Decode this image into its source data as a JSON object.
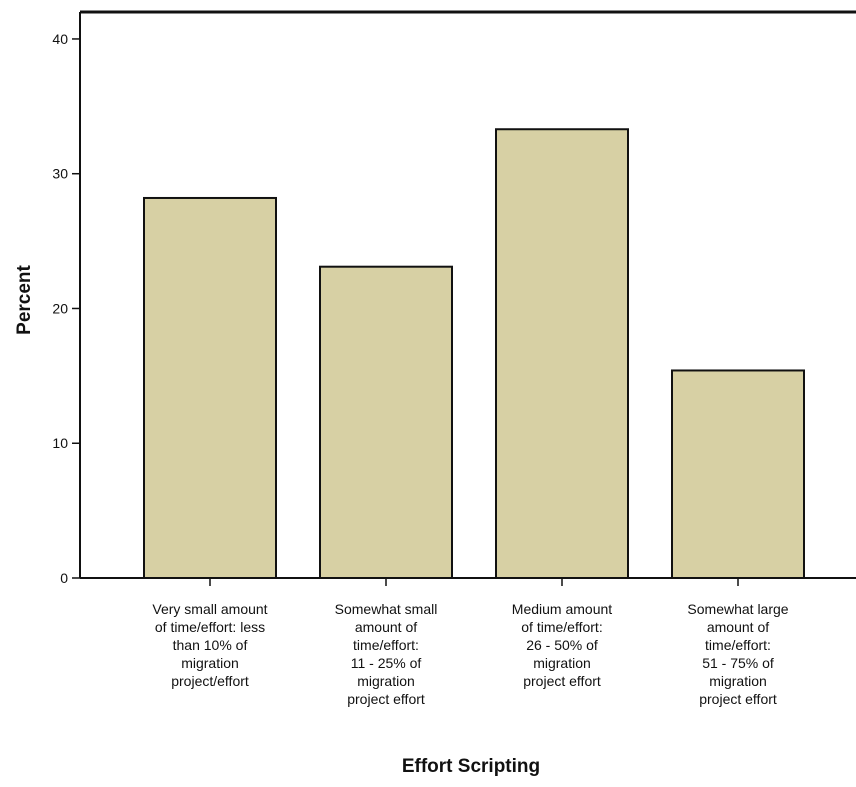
{
  "chart_data": {
    "type": "bar",
    "xlabel": "Effort Scripting",
    "ylabel": "Percent",
    "ylim": [
      0,
      42
    ],
    "yticks": [
      0,
      10,
      20,
      30,
      40
    ],
    "grid": false,
    "bar_color": "#d7d0a4",
    "bar_stroke": "#111111",
    "categories": [
      [
        "Very small amount",
        "of time/effort: less",
        "than 10% of",
        "migration",
        "project/effort"
      ],
      [
        "Somewhat small",
        "amount of",
        "time/effort:",
        "11 - 25% of",
        "migration",
        "project effort"
      ],
      [
        "Medium amount",
        "of time/effort:",
        "26 - 50% of",
        "migration",
        "project effort"
      ],
      [
        "Somewhat large",
        "amount of",
        "time/effort:",
        "51 - 75% of",
        "migration",
        "project effort"
      ]
    ],
    "values": [
      28.2,
      23.1,
      33.3,
      15.4
    ]
  }
}
